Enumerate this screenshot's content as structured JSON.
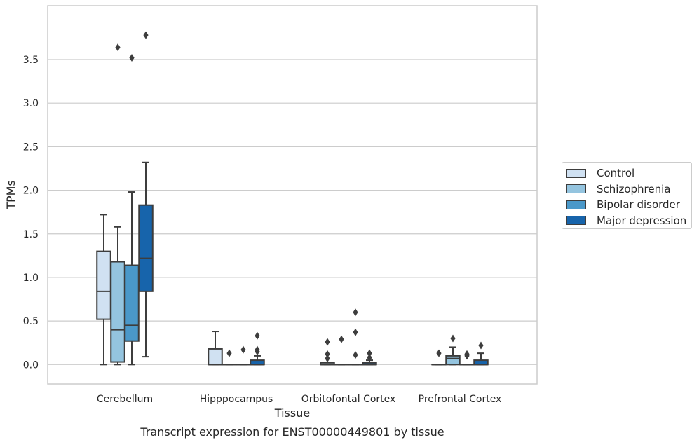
{
  "chart_data": {
    "type": "box",
    "caption": "Transcript expression for ENST00000449801 by tissue",
    "xlabel": "Tissue",
    "ylabel": "TPMs",
    "ylim": [
      -0.18,
      3.98
    ],
    "yticks": [
      "0.0",
      "0.5",
      "1.0",
      "1.5",
      "2.0",
      "2.5",
      "3.0",
      "3.5"
    ],
    "grid": "horizontal",
    "legend_position": "right",
    "categories": [
      "Cerebellum",
      "Hipppocampus",
      "Orbitofontal Cortex",
      "Prefrontal Cortex"
    ],
    "series": [
      {
        "name": "Control",
        "color": "#d0e1f2",
        "boxes": [
          {
            "whislo": 0.0,
            "q1": 0.52,
            "med": 0.84,
            "q3": 1.3,
            "whishi": 1.72,
            "fliers": []
          },
          {
            "whislo": 0.0,
            "q1": 0.0,
            "med": 0.0,
            "q3": 0.18,
            "whishi": 0.38,
            "fliers": []
          },
          {
            "whislo": 0.0,
            "q1": 0.0,
            "med": 0.0,
            "q3": 0.02,
            "whishi": 0.02,
            "fliers": [
              0.26,
              0.12,
              0.07
            ]
          },
          {
            "whislo": 0.0,
            "q1": 0.0,
            "med": 0.0,
            "q3": 0.0,
            "whishi": 0.0,
            "fliers": [
              0.13
            ]
          }
        ]
      },
      {
        "name": "Schizophrenia",
        "color": "#94c4df",
        "boxes": [
          {
            "whislo": 0.0,
            "q1": 0.03,
            "med": 0.4,
            "q3": 1.18,
            "whishi": 1.58,
            "fliers": [
              3.64
            ]
          },
          {
            "whislo": 0.0,
            "q1": 0.0,
            "med": 0.0,
            "q3": 0.0,
            "whishi": 0.0,
            "fliers": [
              0.13
            ]
          },
          {
            "whislo": 0.0,
            "q1": 0.0,
            "med": 0.0,
            "q3": 0.0,
            "whishi": 0.0,
            "fliers": [
              0.29
            ]
          },
          {
            "whislo": 0.0,
            "q1": 0.0,
            "med": 0.07,
            "q3": 0.1,
            "whishi": 0.2,
            "fliers": [
              0.3
            ]
          }
        ]
      },
      {
        "name": "Bipolar disorder",
        "color": "#4a98c9",
        "boxes": [
          {
            "whislo": 0.0,
            "q1": 0.27,
            "med": 0.45,
            "q3": 1.14,
            "whishi": 1.98,
            "fliers": [
              3.52
            ]
          },
          {
            "whislo": 0.0,
            "q1": 0.0,
            "med": 0.0,
            "q3": 0.0,
            "whishi": 0.0,
            "fliers": [
              0.17
            ]
          },
          {
            "whislo": 0.0,
            "q1": 0.0,
            "med": 0.0,
            "q3": 0.0,
            "whishi": 0.0,
            "fliers": [
              0.6,
              0.37,
              0.11
            ]
          },
          {
            "whislo": 0.0,
            "q1": 0.0,
            "med": 0.0,
            "q3": 0.0,
            "whishi": 0.0,
            "fliers": [
              0.12,
              0.1
            ]
          }
        ]
      },
      {
        "name": "Major depression",
        "color": "#1764ab",
        "boxes": [
          {
            "whislo": 0.09,
            "q1": 0.84,
            "med": 1.22,
            "q3": 1.83,
            "whishi": 2.32,
            "fliers": [
              3.78
            ]
          },
          {
            "whislo": 0.0,
            "q1": 0.0,
            "med": 0.0,
            "q3": 0.05,
            "whishi": 0.1,
            "fliers": [
              0.33,
              0.17,
              0.15
            ]
          },
          {
            "whislo": 0.0,
            "q1": 0.0,
            "med": 0.0,
            "q3": 0.02,
            "whishi": 0.05,
            "fliers": [
              0.13,
              0.08
            ]
          },
          {
            "whislo": 0.0,
            "q1": 0.0,
            "med": 0.0,
            "q3": 0.05,
            "whishi": 0.13,
            "fliers": [
              0.22
            ]
          }
        ]
      }
    ]
  }
}
